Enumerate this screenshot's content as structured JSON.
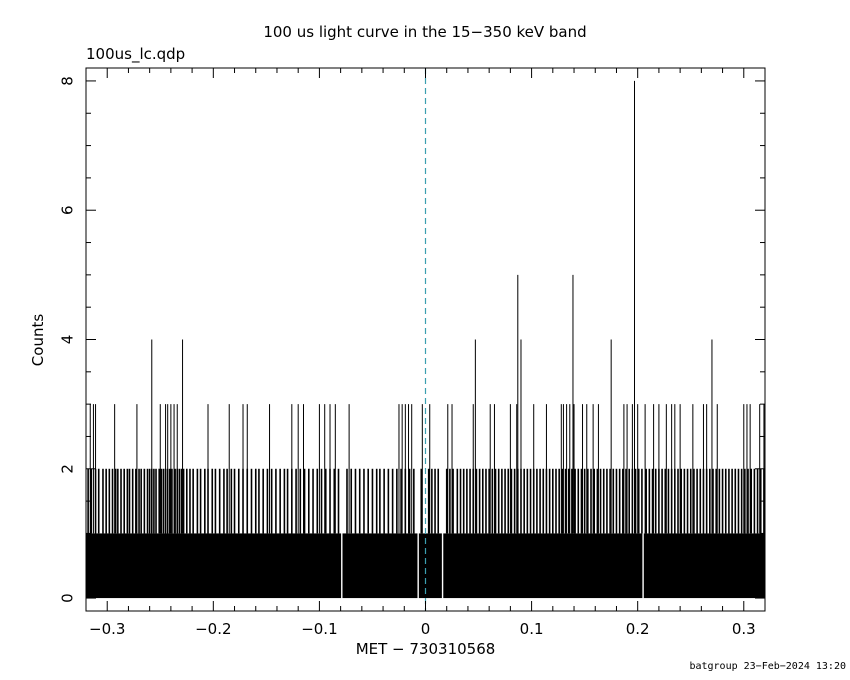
{
  "chart_data": {
    "type": "bar",
    "title": "100 us light curve in the 15−350 keV band",
    "subtitle": "100us_lc.qdp",
    "xlabel": "MET − 730310568",
    "ylabel": "Counts",
    "xlim": [
      -0.32,
      0.32
    ],
    "ylim": [
      -0.2,
      8.2
    ],
    "x_ticks": [
      -0.3,
      -0.2,
      -0.1,
      0,
      0.1,
      0.2,
      0.3
    ],
    "x_tick_labels": [
      "−0.3",
      "−0.2",
      "−0.1",
      "0",
      "0.1",
      "0.2",
      "0.3"
    ],
    "y_ticks": [
      0,
      2,
      4,
      6,
      8
    ],
    "y_tick_labels": [
      "0",
      "2",
      "4",
      "6",
      "8"
    ],
    "bin_width": 0.0001,
    "baseline_counts": 1,
    "reference_line_x": 0,
    "zero_count_times": [
      -0.079,
      -0.007,
      0.016,
      0.205
    ],
    "two_count_times": [
      -0.318,
      -0.315,
      -0.311,
      -0.308,
      -0.304,
      -0.301,
      -0.298,
      -0.295,
      -0.292,
      -0.29,
      -0.287,
      -0.284,
      -0.281,
      -0.279,
      -0.276,
      -0.273,
      -0.27,
      -0.268,
      -0.265,
      -0.262,
      -0.26,
      -0.258,
      -0.256,
      -0.254,
      -0.251,
      -0.249,
      -0.247,
      -0.245,
      -0.243,
      -0.241,
      -0.239,
      -0.236,
      -0.234,
      -0.232,
      -0.23,
      -0.228,
      -0.225,
      -0.222,
      -0.219,
      -0.215,
      -0.212,
      -0.208,
      -0.205,
      -0.201,
      -0.198,
      -0.194,
      -0.19,
      -0.187,
      -0.183,
      -0.18,
      -0.176,
      -0.172,
      -0.168,
      -0.164,
      -0.16,
      -0.157,
      -0.153,
      -0.149,
      -0.145,
      -0.141,
      -0.137,
      -0.133,
      -0.13,
      -0.126,
      -0.122,
      -0.118,
      -0.114,
      -0.11,
      -0.106,
      -0.102,
      -0.098,
      -0.094,
      -0.09,
      -0.086,
      -0.082,
      -0.074,
      -0.07,
      -0.066,
      -0.062,
      -0.058,
      -0.054,
      -0.05,
      -0.046,
      -0.043,
      -0.039,
      -0.035,
      -0.031,
      -0.027,
      -0.023,
      -0.019,
      -0.015,
      -0.011,
      -0.004,
      0.003,
      0.006,
      0.009,
      0.012,
      0.02,
      0.023,
      0.026,
      0.03,
      0.033,
      0.036,
      0.039,
      0.042,
      0.045,
      0.048,
      0.051,
      0.054,
      0.057,
      0.06,
      0.063,
      0.066,
      0.069,
      0.072,
      0.075,
      0.078,
      0.081,
      0.084,
      0.087,
      0.09,
      0.093,
      0.096,
      0.099,
      0.102,
      0.105,
      0.108,
      0.111,
      0.114,
      0.117,
      0.12,
      0.123,
      0.126,
      0.129,
      0.132,
      0.135,
      0.138,
      0.141,
      0.144,
      0.147,
      0.15,
      0.153,
      0.156,
      0.159,
      0.162,
      0.165,
      0.168,
      0.171,
      0.174,
      0.177,
      0.18,
      0.183,
      0.186,
      0.189,
      0.192,
      0.195,
      0.198,
      0.201,
      0.204,
      0.208,
      0.211,
      0.214,
      0.217,
      0.22,
      0.223,
      0.226,
      0.229,
      0.232,
      0.235,
      0.238,
      0.241,
      0.244,
      0.247,
      0.25,
      0.253,
      0.256,
      0.259,
      0.262,
      0.265,
      0.268,
      0.271,
      0.274,
      0.277,
      0.28,
      0.283,
      0.286,
      0.289,
      0.292,
      0.295,
      0.298,
      0.301,
      0.304,
      0.307,
      0.31,
      0.313,
      0.316,
      0.319
    ],
    "three_count_times": [
      -0.316,
      -0.313,
      -0.293,
      -0.272,
      -0.25,
      -0.245,
      -0.243,
      -0.24,
      -0.237,
      -0.234,
      -0.205,
      -0.185,
      -0.172,
      -0.168,
      -0.147,
      -0.126,
      -0.12,
      -0.115,
      -0.1,
      -0.095,
      -0.09,
      -0.085,
      -0.072,
      -0.025,
      -0.022,
      -0.019,
      -0.016,
      -0.013,
      -0.003,
      0.004,
      0.021,
      0.025,
      0.045,
      0.061,
      0.065,
      0.08,
      0.086,
      0.102,
      0.114,
      0.128,
      0.13,
      0.133,
      0.136,
      0.14,
      0.148,
      0.152,
      0.158,
      0.163,
      0.187,
      0.19,
      0.195,
      0.2,
      0.207,
      0.215,
      0.22,
      0.227,
      0.232,
      0.235,
      0.24,
      0.252,
      0.262,
      0.265,
      0.275,
      0.3,
      0.303,
      0.306,
      0.315,
      0.319
    ],
    "peaks": [
      {
        "x": -0.311,
        "y": 3
      },
      {
        "x": -0.258,
        "y": 4
      },
      {
        "x": -0.229,
        "y": 4
      },
      {
        "x": 0.047,
        "y": 4
      },
      {
        "x": 0.087,
        "y": 5
      },
      {
        "x": 0.09,
        "y": 4
      },
      {
        "x": 0.139,
        "y": 5
      },
      {
        "x": 0.175,
        "y": 4
      },
      {
        "x": 0.197,
        "y": 8
      },
      {
        "x": 0.27,
        "y": 4
      }
    ]
  },
  "footer": {
    "stamp": "batgroup 23−Feb−2024 13:20"
  },
  "colors": {
    "data": "#000000",
    "reference_line": "#3a9fb0",
    "axes": "#000000"
  }
}
